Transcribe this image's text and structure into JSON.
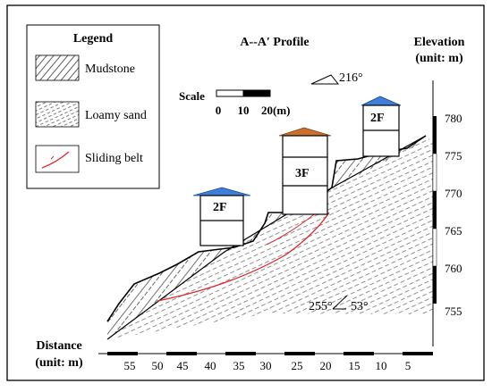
{
  "legend": {
    "title": "Legend",
    "items": [
      {
        "label": "Mudstone",
        "icon": "mudstone-hatch-icon"
      },
      {
        "label": "Loamy sand",
        "icon": "loamy-sand-hatch-icon"
      },
      {
        "label": "Sliding belt",
        "icon": "sliding-belt-line-icon",
        "color": "#e0262a"
      }
    ]
  },
  "profile_title": "A--A′ Profile",
  "elevation_label": {
    "line1": "Elevation",
    "line2": "(unit: m)"
  },
  "distance_label": {
    "line1": "Distance",
    "line2": "(unit: m)"
  },
  "scale": {
    "label": "Scale",
    "tick0": "0",
    "tick1": "10",
    "tick2": "20(m)"
  },
  "strike": {
    "label": "216°"
  },
  "dip": {
    "label_dir": "255°",
    "label_angle": "53°"
  },
  "buildings": [
    {
      "label": "2F",
      "roof_color": "#3f7fd8"
    },
    {
      "label": "3F",
      "roof_color": "#c8712f"
    },
    {
      "label": "2F",
      "roof_color": "#3f7fd8"
    }
  ],
  "elevation_ticks": [
    "780",
    "775",
    "770",
    "765",
    "760",
    "755"
  ],
  "distance_ticks": [
    "55",
    "50",
    "45",
    "40",
    "35",
    "30",
    "25",
    "20",
    "15",
    "10",
    "5"
  ],
  "colors": {
    "sliding_belt": "#e0262a",
    "building_roof_blue": "#3f7fd8",
    "building_roof_brown": "#c8712f"
  }
}
